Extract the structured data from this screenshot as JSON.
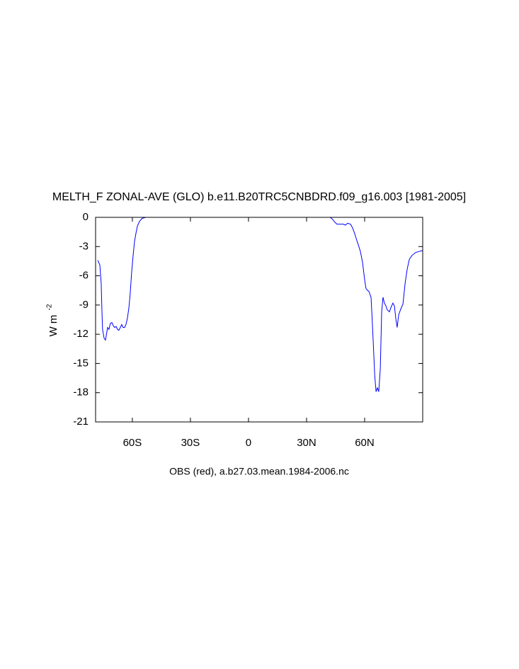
{
  "chart_data": {
    "type": "line",
    "title": "MELTH_F ZONAL-AVE (GLO) b.e11.B20TRC5CNBDRD.f09_g16.003 [1981-2005]",
    "subtitle": "OBS (red), a.b27.03.mean.1984-2006.nc",
    "ylabel": "W m",
    "ylabel_superscript": "-2",
    "x": [
      -77.9,
      -76.8,
      -76.1,
      -75.7,
      -75.4,
      -74.6,
      -73.9,
      -73.2,
      -72.8,
      -72.1,
      -71.4,
      -70.6,
      -69.9,
      -69.2,
      -68.4,
      -67.7,
      -67.0,
      -66.2,
      -65.5,
      -64.8,
      -64.0,
      -63.3,
      -62.6,
      -61.8,
      -61.1,
      -60.4,
      -59.6,
      -58.9,
      -58.2,
      -57.4,
      -56.3,
      -54.9,
      -53,
      0,
      42.1,
      43.2,
      44.6,
      45.7,
      47.6,
      49.0,
      50.1,
      51.2,
      52.7,
      53.8,
      54.9,
      56.0,
      56.7,
      57.8,
      58.9,
      60.0,
      60.7,
      61.5,
      62.2,
      63.3,
      63.7,
      64.4,
      65.2,
      65.9,
      66.6,
      67.3,
      68.1,
      68.8,
      69.5,
      70.2,
      71.0,
      71.7,
      72.8,
      73.5,
      74.6,
      75.4,
      76.1,
      76.8,
      77.6,
      78.7,
      79.8,
      80.9,
      82.0,
      83.1,
      84.5,
      86.4,
      88.2,
      90
    ],
    "series": [
      {
        "name": "MELTH_F",
        "color": "#0000ff",
        "values": [
          -4.4,
          -4.9,
          -6.8,
          -9.7,
          -11.5,
          -12.4,
          -12.6,
          -11.8,
          -11.3,
          -11.5,
          -10.9,
          -10.8,
          -11.1,
          -11.3,
          -11.2,
          -11.5,
          -11.6,
          -11.3,
          -11.0,
          -11.3,
          -11.3,
          -11.0,
          -10.4,
          -9.3,
          -7.8,
          -5.7,
          -3.9,
          -2.5,
          -1.7,
          -0.9,
          -0.4,
          -0.1,
          0,
          0,
          0,
          -0.15,
          -0.5,
          -0.7,
          -0.7,
          -0.7,
          -0.8,
          -0.6,
          -0.7,
          -1.1,
          -1.7,
          -2.4,
          -2.8,
          -3.5,
          -4.6,
          -6.4,
          -7.3,
          -7.5,
          -7.6,
          -8.2,
          -9.7,
          -12.6,
          -16.2,
          -17.9,
          -17.5,
          -17.9,
          -15.5,
          -9.7,
          -8.2,
          -8.8,
          -9.1,
          -9.5,
          -9.7,
          -9.3,
          -8.8,
          -9.1,
          -10.4,
          -11.3,
          -10.0,
          -9.4,
          -8.9,
          -6.8,
          -5.3,
          -4.3,
          -3.9,
          -3.6,
          -3.5,
          -3.4
        ]
      }
    ],
    "xlim": [
      -79,
      90
    ],
    "ylim": [
      -21,
      0
    ],
    "xticks": [
      {
        "value": -60,
        "label": "60S"
      },
      {
        "value": -30,
        "label": "30S"
      },
      0,
      {
        "value": 30,
        "label": "30N"
      },
      {
        "value": 60,
        "label": "60N"
      }
    ],
    "yticks": [
      0,
      -3,
      -6,
      -9,
      -12,
      -15,
      -18,
      -21
    ]
  }
}
